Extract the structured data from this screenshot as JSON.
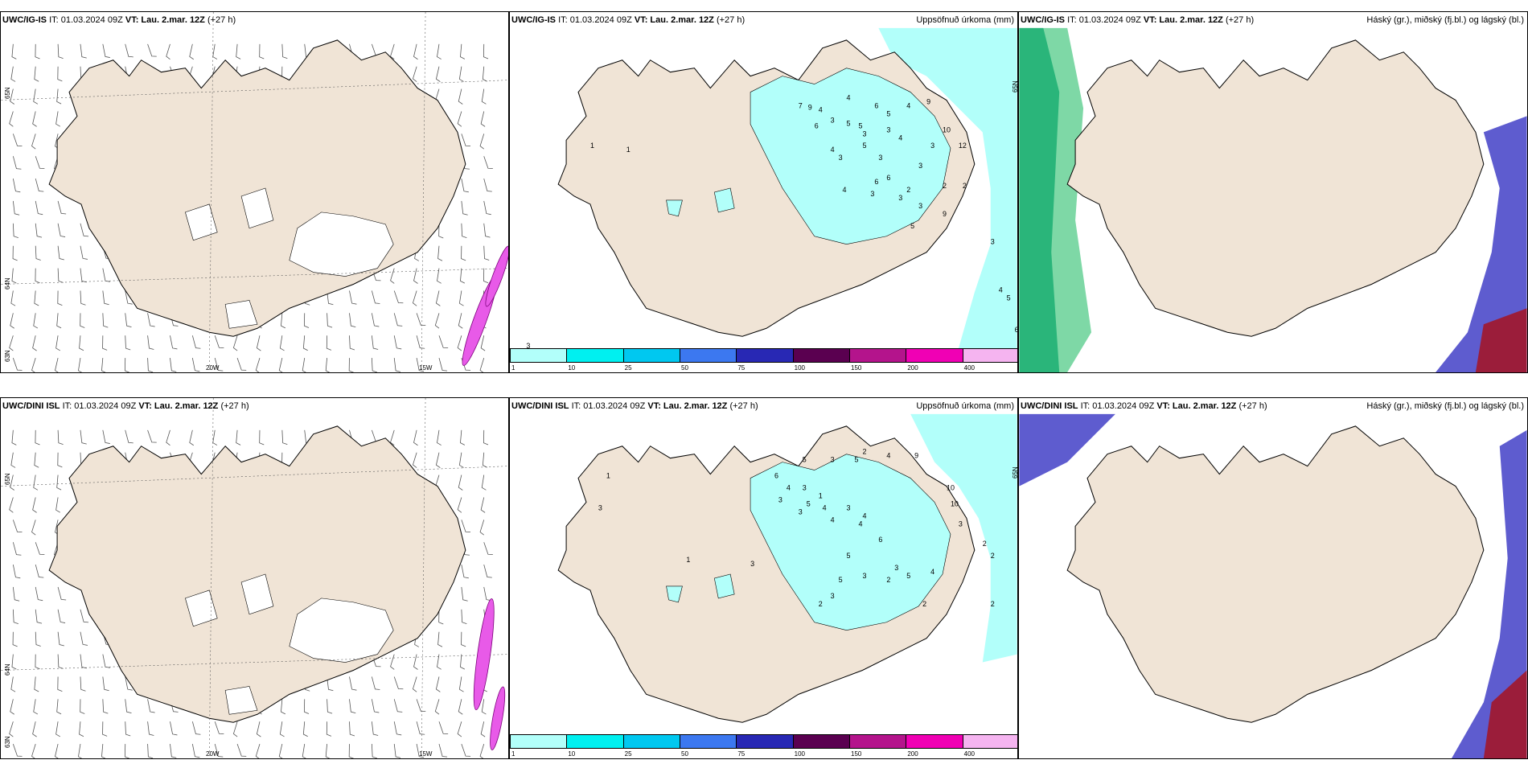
{
  "colors": {
    "land": "#f0e4d6",
    "precip_light": "#b2fffa",
    "precip_cyan": "#00e9e9",
    "cloud_high_green": "#2ab57a",
    "cloud_mid_blue": "#5e5ccf",
    "cloud_low_red": "#9b1d3a",
    "jet_magenta": "#e85ae8"
  },
  "panels": {
    "top_left": {
      "model": "UWC/IG-IS",
      "it": "IT: 01.03.2024 09Z",
      "vt": "VT: Lau. 2.mar. 12Z",
      "lead": "(+27 h)",
      "lat_labels": [
        "65N",
        "64N",
        "63N"
      ],
      "lon_labels": [
        "20W",
        "15W"
      ]
    },
    "top_mid": {
      "model": "UWC/IG-IS",
      "it": "IT: 01.03.2024 09Z",
      "vt": "VT: Lau. 2.mar. 12Z",
      "lead": "(+27 h)",
      "title_right": "Uppsöfnuð úrkoma (mm)",
      "lat_labels": [
        "65N"
      ],
      "values": [
        "7",
        "9",
        "4",
        "4",
        "3",
        "6",
        "5",
        "5",
        "4",
        "9",
        "6",
        "5",
        "3",
        "3",
        "4",
        "3",
        "10",
        "4",
        "3",
        "5",
        "3",
        "3",
        "12",
        "6",
        "4",
        "3",
        "6",
        "2",
        "2",
        "3",
        "3",
        "5",
        "9",
        "2",
        "3",
        "4",
        "5",
        "6",
        "1",
        "1",
        "3"
      ]
    },
    "top_right": {
      "model": "UWC/IG-IS",
      "it": "IT: 01.03.2024 09Z",
      "vt": "VT: Lau. 2.mar. 12Z",
      "lead": "(+27 h)",
      "title_right": "Háský (gr.), miðský (fj.bl.) og lágský (bl.)"
    },
    "bottom_left": {
      "model": "UWC/DINI ISL",
      "it": "IT: 01.03.2024 09Z",
      "vt": "VT: Lau. 2.mar. 12Z",
      "lead": "(+27 h)",
      "lat_labels": [
        "65N",
        "64N",
        "63N"
      ],
      "lon_labels": [
        "20W",
        "15W"
      ]
    },
    "bottom_mid": {
      "model": "UWC/DINI ISL",
      "it": "IT: 01.03.2024 09Z",
      "vt": "VT: Lau. 2.mar. 12Z",
      "lead": "(+27 h)",
      "title_right": "Uppsöfnuð úrkoma (mm)",
      "lat_labels": [
        "65N"
      ],
      "values": [
        "2",
        "5",
        "3",
        "5",
        "4",
        "9",
        "6",
        "4",
        "3",
        "1",
        "3",
        "5",
        "4",
        "3",
        "4",
        "10",
        "3",
        "4",
        "4",
        "10",
        "1",
        "3",
        "6",
        "2",
        "2",
        "3",
        "5",
        "2",
        "5",
        "4",
        "3",
        "5",
        "3",
        "2",
        "2",
        "3",
        "1",
        "3",
        "2"
      ]
    },
    "bottom_right": {
      "model": "UWC/DINI ISL",
      "it": "IT: 01.03.2024 09Z",
      "vt": "VT: Lau. 2.mar. 12Z",
      "lead": "(+27 h)",
      "title_right": "Háský (gr.), miðský (fj.bl.) og lágský (bl.)"
    }
  },
  "colorbar": {
    "labels": [
      "1",
      "10",
      "25",
      "50",
      "75",
      "100",
      "150",
      "200",
      "400"
    ],
    "colors": [
      "#b2fffa",
      "#00f0f0",
      "#00c8f0",
      "#3c78f0",
      "#2828b4",
      "#5a0050",
      "#b4148c",
      "#f000b4",
      "#f5b4f0"
    ]
  }
}
